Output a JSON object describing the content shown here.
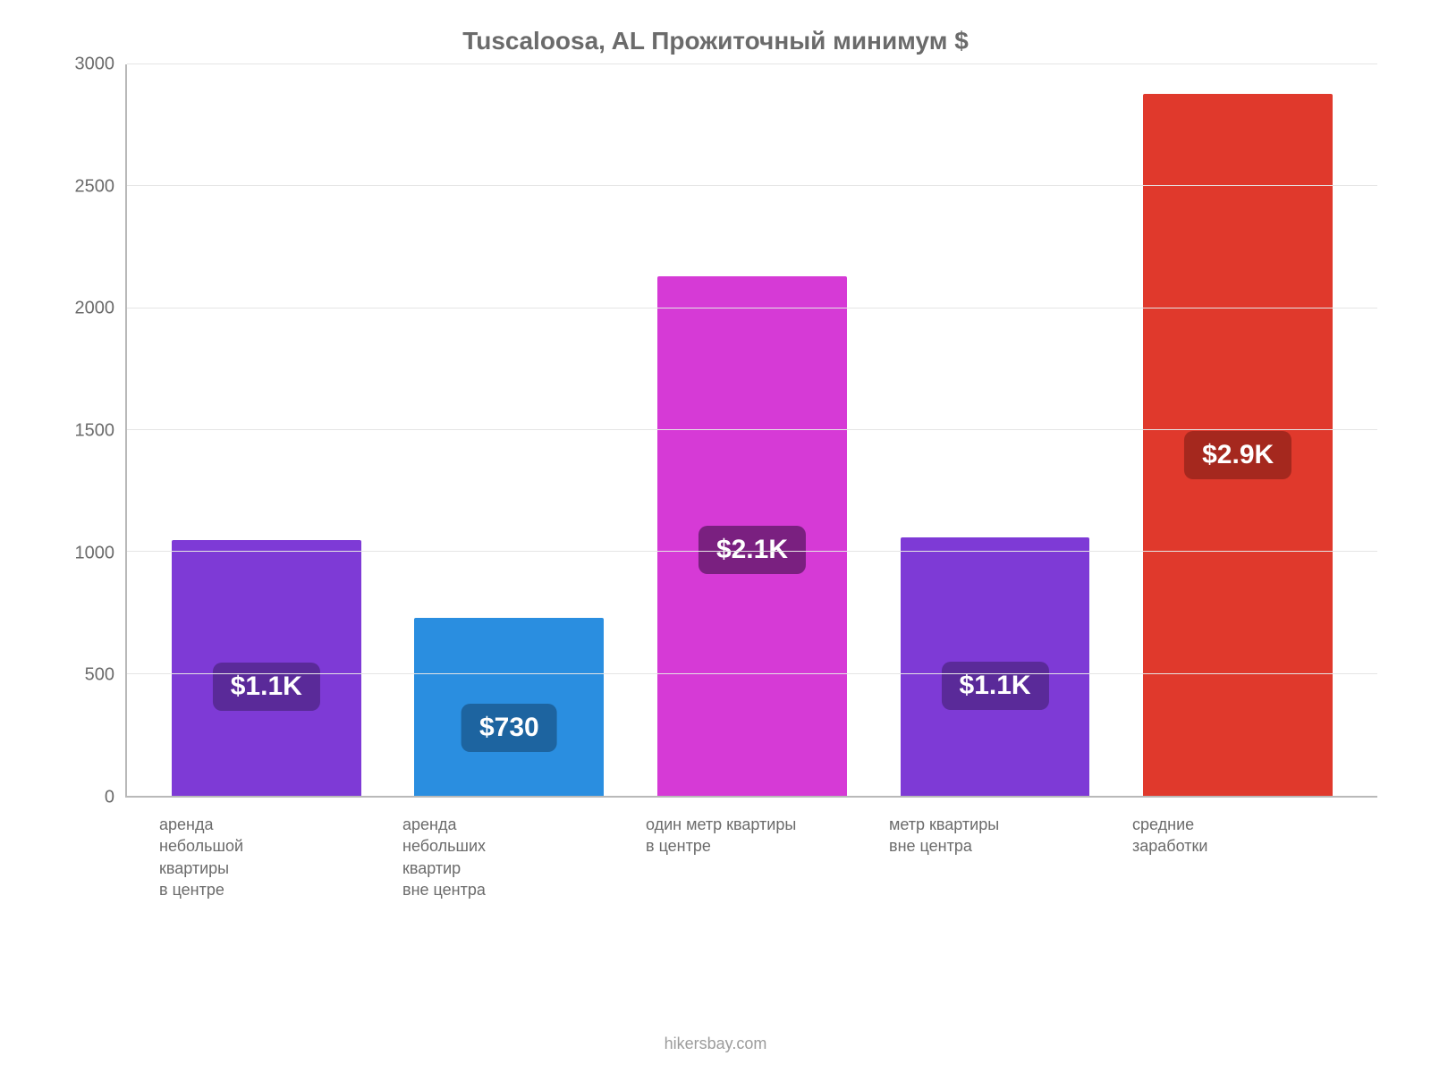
{
  "chart": {
    "type": "bar",
    "title": "Tuscaloosa, AL Прожиточный минимум $",
    "title_fontsize": 28,
    "title_color": "#6b6b6b",
    "background_color": "#ffffff",
    "grid_color": "#e5e5e5",
    "axis_color": "#b9b9b9",
    "tick_color": "#6b6b6b",
    "tick_fontsize": 20,
    "xlabel_fontsize": 18,
    "value_badge_fontsize": 30,
    "ylim": [
      0,
      3000
    ],
    "ytick_step": 500,
    "yticks": [
      0,
      500,
      1000,
      1500,
      2000,
      2500,
      3000
    ],
    "bar_width": 0.78,
    "categories": [
      [
        "аренда",
        "небольшой",
        "квартиры",
        "в центре"
      ],
      [
        "аренда",
        "небольших",
        "квартир",
        "вне центра"
      ],
      [
        "один метр квартиры",
        "в центре"
      ],
      [
        "метр квартиры",
        "вне центра"
      ],
      [
        "средние",
        "заработки"
      ]
    ],
    "values": [
      1050,
      730,
      2130,
      1060,
      2880
    ],
    "value_labels": [
      "$1.1K",
      "$730",
      "$2.1K",
      "$1.1K",
      "$2.9K"
    ],
    "bar_colors": [
      "#7e3ad6",
      "#2a8ee0",
      "#d63ad6",
      "#7e3ad6",
      "#e0392c"
    ],
    "badge_colors": [
      "#5a2a99",
      "#1d64a0",
      "#7a2080",
      "#5a2a99",
      "#a5281e"
    ],
    "attribution": "hikersbay.com"
  }
}
